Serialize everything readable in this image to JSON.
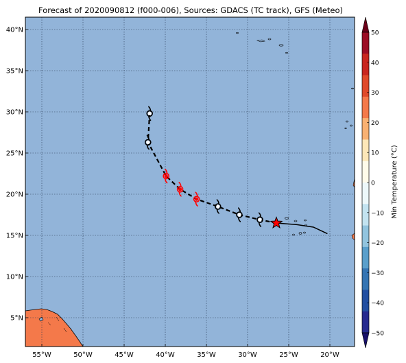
{
  "title": "Forecast of 2020090812 (f000-006), Sources: GDACS (TC track), GFS (Meteo)",
  "colorbar": {
    "label": "Min Temperature (°C)",
    "ticks": [
      "50",
      "40",
      "30",
      "20",
      "10",
      "0",
      "−10",
      "−20",
      "−30",
      "−40",
      "−50"
    ],
    "colors": [
      "#6a0018",
      "#9c0d24",
      "#c9261f",
      "#e04a2a",
      "#f4794a",
      "#f9b172",
      "#fde7b8",
      "#fffbea",
      "#edf8fa",
      "#c3e3f0",
      "#92c4de",
      "#5a9fcb",
      "#3575b3",
      "#224ea1",
      "#262a8f",
      "#17106a"
    ]
  },
  "map": {
    "ocean_color": "#92b4d9",
    "land_color": "#f4794a",
    "lon_range": [
      -57,
      -17
    ],
    "lat_range": [
      1.5,
      41.5
    ],
    "lon_ticks": [
      "55°W",
      "50°W",
      "45°W",
      "40°W",
      "35°W",
      "30°W",
      "25°W",
      "20°W"
    ],
    "lat_ticks": [
      "40°N",
      "35°N",
      "30°N",
      "25°N",
      "20°N",
      "15°N",
      "10°N",
      "5°N"
    ]
  },
  "track": {
    "past": [
      [
        -26.5,
        16.5
      ],
      [
        -24,
        16.3
      ],
      [
        -22,
        16.0
      ],
      [
        -20.3,
        15.2
      ]
    ],
    "forecast": [
      [
        -26.5,
        16.5
      ],
      [
        -28.5,
        16.9
      ],
      [
        -31,
        17.5
      ],
      [
        -33.6,
        18.5
      ],
      [
        -36.2,
        19.4
      ],
      [
        -38.2,
        20.6
      ],
      [
        -39.9,
        22.2
      ],
      [
        -42.1,
        26.3
      ],
      [
        -41.9,
        29.8
      ]
    ],
    "current_position": [
      -26.5,
      16.5
    ],
    "symbols": [
      {
        "lon": -28.5,
        "lat": 16.9,
        "color": "#000000"
      },
      {
        "lon": -31.0,
        "lat": 17.5,
        "color": "#000000"
      },
      {
        "lon": -33.6,
        "lat": 18.5,
        "color": "#000000"
      },
      {
        "lon": -36.2,
        "lat": 19.4,
        "color": "#ff0000"
      },
      {
        "lon": -38.2,
        "lat": 20.6,
        "color": "#ff0000"
      },
      {
        "lon": -39.9,
        "lat": 22.2,
        "color": "#ff0000"
      },
      {
        "lon": -42.1,
        "lat": 26.3,
        "color": "#000000"
      },
      {
        "lon": -41.9,
        "lat": 29.8,
        "color": "#000000"
      }
    ]
  }
}
